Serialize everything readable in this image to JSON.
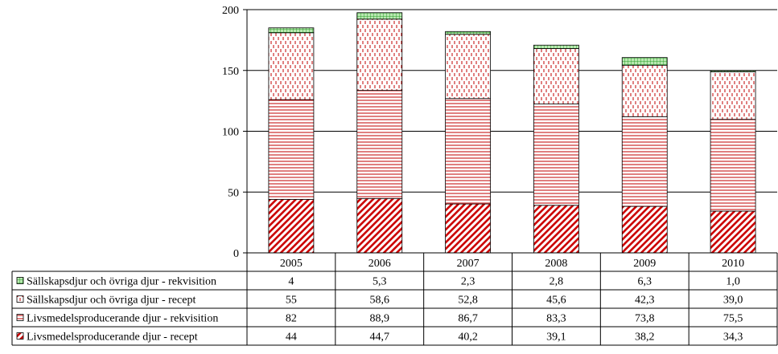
{
  "chart_data": {
    "type": "bar",
    "stacked": true,
    "categories": [
      "2005",
      "2006",
      "2007",
      "2008",
      "2009",
      "2010"
    ],
    "ylim": [
      0,
      200
    ],
    "yticks": [
      0,
      50,
      100,
      150,
      200
    ],
    "ytick_labels": [
      "0",
      "50",
      "100",
      "150",
      "200"
    ],
    "grid": true,
    "legend_placement": "data-table-left",
    "series": [
      {
        "name": "Livsmedelsproducerande djur - recept",
        "values": [
          44,
          44.7,
          40.2,
          39.1,
          38.2,
          34.3
        ],
        "labels": [
          "44",
          "44,7",
          "40,2",
          "39,1",
          "38,2",
          "34,3"
        ],
        "pattern": "diagonal",
        "color": "#cc0000"
      },
      {
        "name": "Livsmedelsproducerande djur - rekvisition",
        "values": [
          82,
          88.9,
          86.7,
          83.3,
          73.8,
          75.5
        ],
        "labels": [
          "82",
          "88,9",
          "86,7",
          "83,3",
          "73,8",
          "75,5"
        ],
        "pattern": "horizontal",
        "color": "#c00000"
      },
      {
        "name": "Sällskapsdjur och övriga djur - recept",
        "values": [
          55,
          58.6,
          52.8,
          45.6,
          42.3,
          39.0
        ],
        "labels": [
          "55",
          "58,6",
          "52,8",
          "45,6",
          "42,3",
          "39,0"
        ],
        "pattern": "dashes",
        "color": "#c00000"
      },
      {
        "name": "Sällskapsdjur och övriga djur - rekvisition",
        "values": [
          4,
          5.3,
          2.3,
          2.8,
          6.3,
          1.0
        ],
        "labels": [
          "4",
          "5,3",
          "2,3",
          "2,8",
          "6,3",
          "1,0"
        ],
        "pattern": "grid",
        "color": "#33aa33"
      }
    ]
  }
}
